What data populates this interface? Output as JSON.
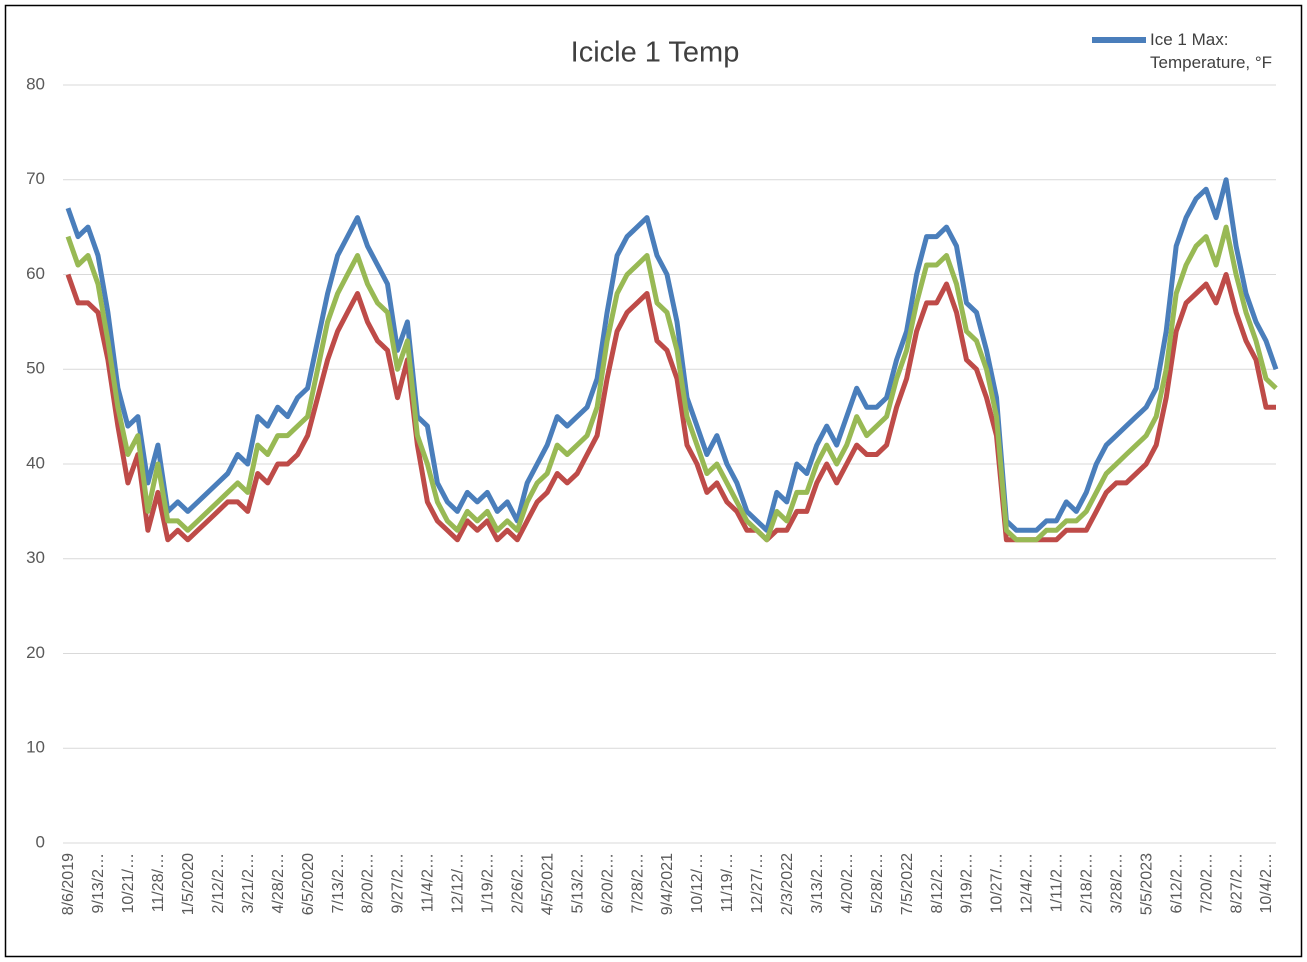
{
  "chart_data": {
    "type": "line",
    "title": "Icicle 1 Temp",
    "legend": "top-right",
    "grid": true,
    "ylim": [
      0,
      80
    ],
    "yticks": [
      0,
      10,
      20,
      30,
      40,
      50,
      60,
      70,
      80
    ],
    "categories": [
      "8/6/2019",
      null,
      null,
      "9/13/2…",
      null,
      null,
      "10/21/…",
      null,
      null,
      "11/28/…",
      null,
      null,
      "1/5/2020",
      null,
      null,
      "2/12/2…",
      null,
      null,
      "3/21/2…",
      null,
      null,
      "4/28/2…",
      null,
      null,
      "6/5/2020",
      null,
      null,
      "7/13/2…",
      null,
      null,
      "8/20/2…",
      null,
      null,
      "9/27/2…",
      null,
      null,
      "11/4/2…",
      null,
      null,
      "12/12/…",
      null,
      null,
      "1/19/2…",
      null,
      null,
      "2/26/2…",
      null,
      null,
      "4/5/2021",
      null,
      null,
      "5/13/2…",
      null,
      null,
      "6/20/2…",
      null,
      null,
      "7/28/2…",
      null,
      null,
      "9/4/2021",
      null,
      null,
      "10/12/…",
      null,
      null,
      "11/19/…",
      null,
      null,
      "12/27/…",
      null,
      null,
      "2/3/2022",
      null,
      null,
      "3/13/2…",
      null,
      null,
      "4/20/2…",
      null,
      null,
      "5/28/2…",
      null,
      null,
      "7/5/2022",
      null,
      null,
      "8/12/2…",
      null,
      null,
      "9/19/2…",
      null,
      null,
      "10/27/…",
      null,
      null,
      "12/4/2…",
      null,
      null,
      "1/11/2…",
      null,
      null,
      "2/18/2…",
      null,
      null,
      "3/28/2…",
      null,
      null,
      "5/5/2023",
      null,
      null,
      "6/12/2…",
      null,
      null,
      "7/20/2…",
      null,
      null,
      "8/27/2…",
      null,
      null,
      "10/4/2…",
      null
    ],
    "series": [
      {
        "name": "Ice 1 Max: Temperature, °F",
        "color": "#4a7ebb",
        "values": [
          67,
          64,
          65,
          62,
          56,
          48,
          44,
          45,
          38,
          42,
          35,
          36,
          35,
          36,
          37,
          38,
          39,
          41,
          40,
          45,
          44,
          46,
          45,
          47,
          48,
          53,
          58,
          62,
          64,
          66,
          63,
          61,
          59,
          52,
          55,
          45,
          44,
          38,
          36,
          35,
          37,
          36,
          37,
          35,
          36,
          34,
          38,
          40,
          42,
          45,
          44,
          45,
          46,
          49,
          56,
          62,
          64,
          65,
          66,
          62,
          60,
          55,
          47,
          44,
          41,
          43,
          40,
          38,
          35,
          34,
          33,
          37,
          36,
          40,
          39,
          42,
          44,
          42,
          45,
          48,
          46,
          46,
          47,
          51,
          54,
          60,
          64,
          64,
          65,
          63,
          57,
          56,
          52,
          47,
          34,
          33,
          33,
          33,
          34,
          34,
          36,
          35,
          37,
          40,
          42,
          43,
          44,
          45,
          46,
          48,
          54,
          63,
          66,
          68,
          69,
          66,
          70,
          63,
          58,
          55,
          53,
          50
        ]
      },
      {
        "color": "#be4b48",
        "values": [
          60,
          57,
          57,
          56,
          51,
          44,
          38,
          41,
          33,
          37,
          32,
          33,
          32,
          33,
          34,
          35,
          36,
          36,
          35,
          39,
          38,
          40,
          40,
          41,
          43,
          47,
          51,
          54,
          56,
          58,
          55,
          53,
          52,
          47,
          51,
          42,
          36,
          34,
          33,
          32,
          34,
          33,
          34,
          32,
          33,
          32,
          34,
          36,
          37,
          39,
          38,
          39,
          41,
          43,
          49,
          54,
          56,
          57,
          58,
          53,
          52,
          49,
          42,
          40,
          37,
          38,
          36,
          35,
          33,
          33,
          32,
          33,
          33,
          35,
          35,
          38,
          40,
          38,
          40,
          42,
          41,
          41,
          42,
          46,
          49,
          54,
          57,
          57,
          59,
          56,
          51,
          50,
          47,
          43,
          32,
          32,
          32,
          32,
          32,
          32,
          33,
          33,
          33,
          35,
          37,
          38,
          38,
          39,
          40,
          42,
          47,
          54,
          57,
          58,
          59,
          57,
          60,
          56,
          53,
          51,
          46,
          46
        ]
      },
      {
        "color": "#98b954",
        "values": [
          64,
          61,
          62,
          59,
          53,
          46,
          41,
          43,
          35,
          40,
          34,
          34,
          33,
          34,
          35,
          36,
          37,
          38,
          37,
          42,
          41,
          43,
          43,
          44,
          45,
          50,
          55,
          58,
          60,
          62,
          59,
          57,
          56,
          50,
          53,
          43,
          40,
          36,
          34,
          33,
          35,
          34,
          35,
          33,
          34,
          33,
          36,
          38,
          39,
          42,
          41,
          42,
          43,
          46,
          53,
          58,
          60,
          61,
          62,
          57,
          56,
          52,
          45,
          42,
          39,
          40,
          38,
          36,
          34,
          33,
          32,
          35,
          34,
          37,
          37,
          40,
          42,
          40,
          42,
          45,
          43,
          44,
          45,
          49,
          52,
          57,
          61,
          61,
          62,
          59,
          54,
          53,
          50,
          45,
          33,
          32,
          32,
          32,
          33,
          33,
          34,
          34,
          35,
          37,
          39,
          40,
          41,
          42,
          43,
          45,
          50,
          58,
          61,
          63,
          64,
          61,
          65,
          60,
          56,
          53,
          49,
          48
        ]
      }
    ]
  }
}
